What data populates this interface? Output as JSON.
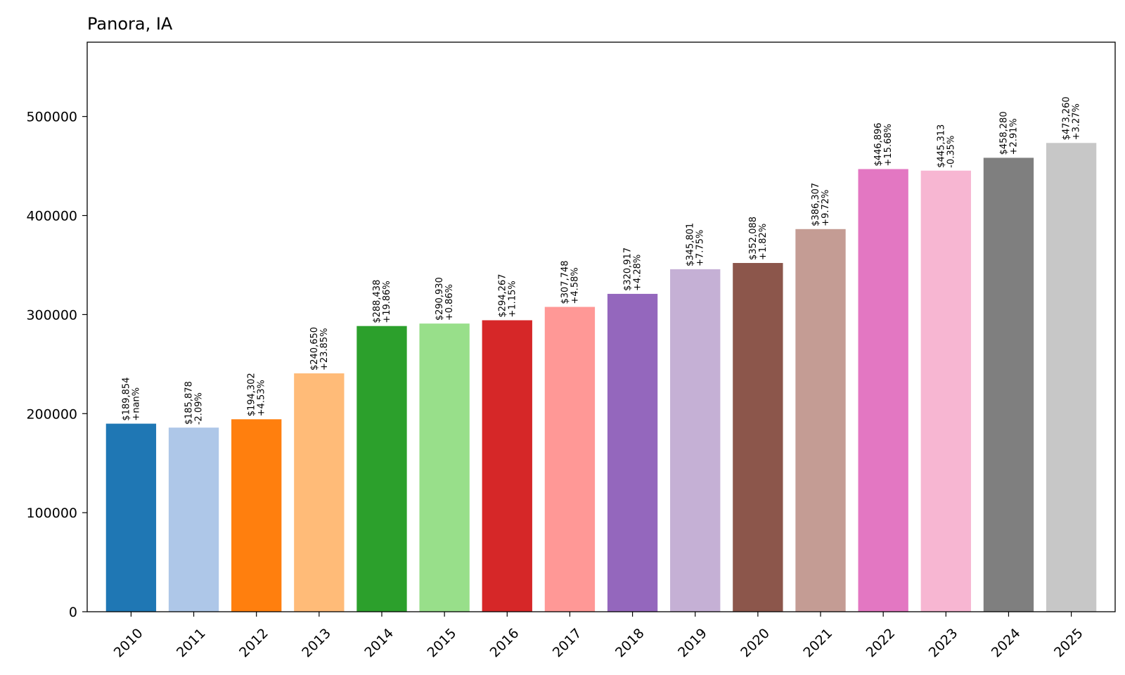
{
  "chart_data": {
    "type": "bar",
    "title": "Panora, IA",
    "xlabel": "",
    "ylabel": "",
    "categories": [
      "2010",
      "2011",
      "2012",
      "2013",
      "2014",
      "2015",
      "2016",
      "2017",
      "2018",
      "2019",
      "2020",
      "2021",
      "2022",
      "2023",
      "2024",
      "2025"
    ],
    "values": [
      189854,
      185878,
      194302,
      240650,
      288438,
      290930,
      294267,
      307748,
      320917,
      345801,
      352088,
      386307,
      446896,
      445313,
      458280,
      473260
    ],
    "value_labels": [
      "$189,854",
      "$185,878",
      "$194,302",
      "$240,650",
      "$288,438",
      "$290,930",
      "$294,267",
      "$307,748",
      "$320,917",
      "$345,801",
      "$352,088",
      "$386,307",
      "$446,896",
      "$445,313",
      "$458,280",
      "$473,260"
    ],
    "change_labels": [
      "+nan%",
      "-2.09%",
      "+4.53%",
      "+23.85%",
      "+19.86%",
      "+0.86%",
      "+1.15%",
      "+4.58%",
      "+4.28%",
      "+7.75%",
      "+1.82%",
      "+9.72%",
      "+15.68%",
      "-0.35%",
      "+2.91%",
      "+3.27%"
    ],
    "colors": [
      "#1f77b4",
      "#aec7e8",
      "#ff7f0e",
      "#ffbb78",
      "#2ca02c",
      "#98df8a",
      "#d62728",
      "#ff9896",
      "#9467bd",
      "#c5b0d5",
      "#8c564b",
      "#c49c94",
      "#e377c2",
      "#f7b6d2",
      "#7f7f7f",
      "#c7c7c7"
    ],
    "yticks": [
      0,
      100000,
      200000,
      300000,
      400000,
      500000
    ],
    "ytick_labels": [
      "0",
      "100000",
      "200000",
      "300000",
      "400000",
      "500000"
    ],
    "ylim": [
      0,
      575000
    ],
    "grid": false,
    "legend": "none"
  }
}
